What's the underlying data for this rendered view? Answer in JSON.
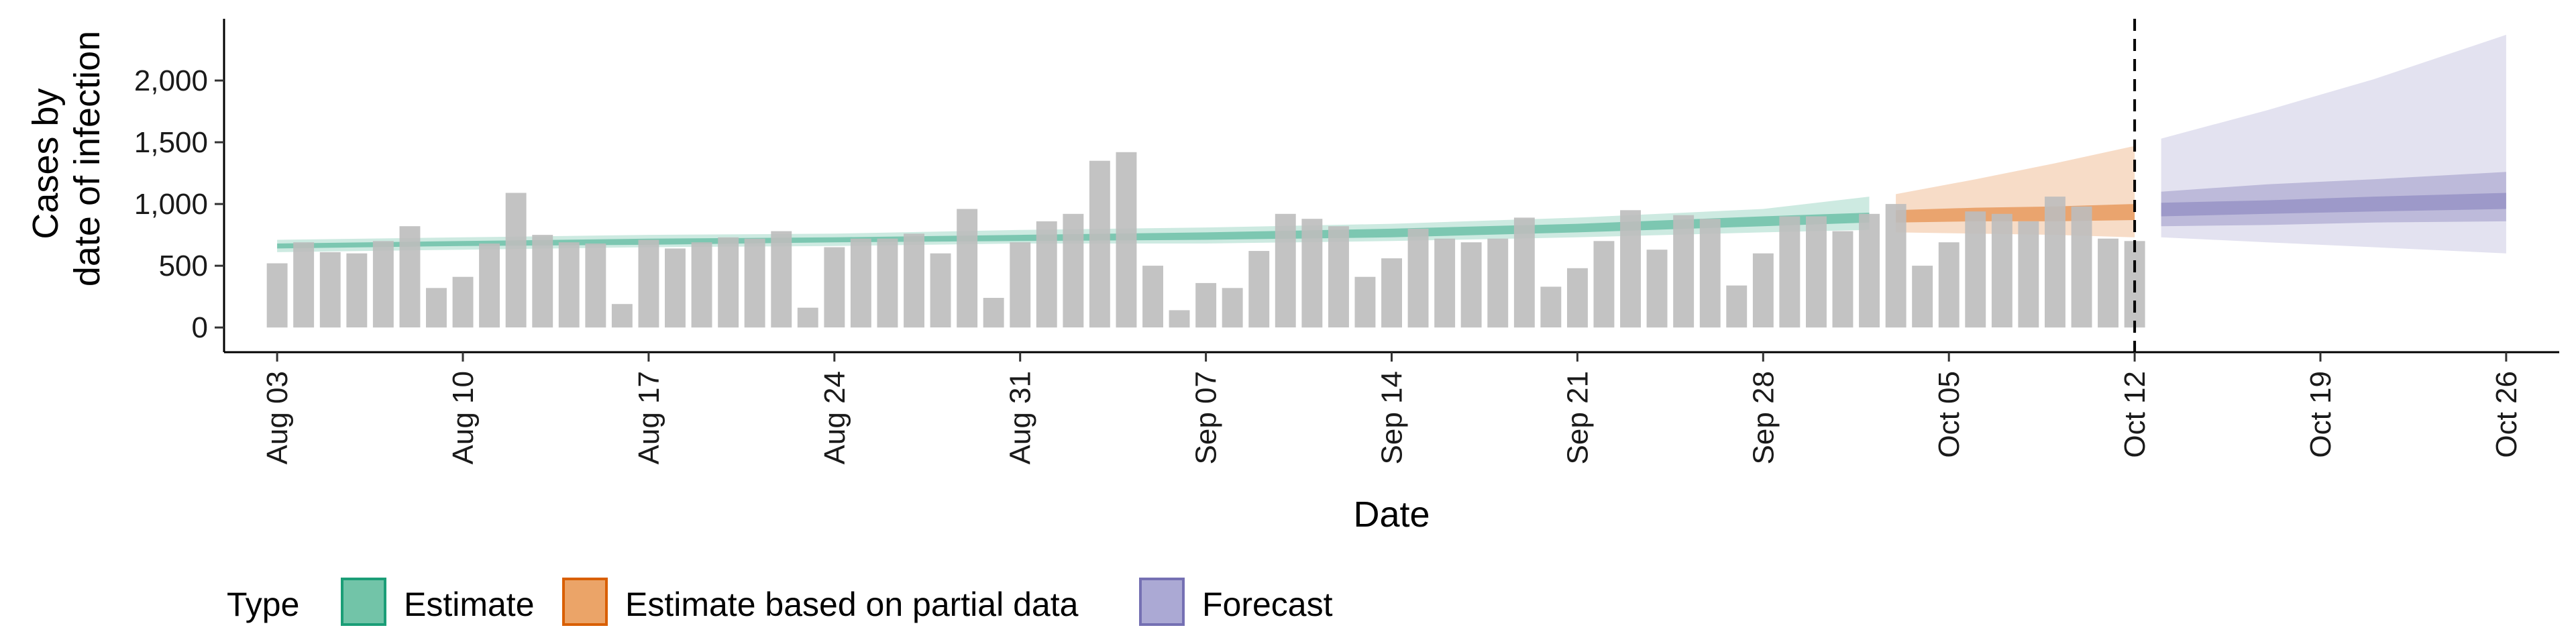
{
  "chart_data": {
    "type": "bar",
    "xlabel": "Date",
    "ylabel": [
      "Cases by",
      "date of infection"
    ],
    "ylim": [
      -200,
      2500
    ],
    "y_ticks": [
      0,
      500,
      1000,
      1500,
      2000
    ],
    "y_tick_labels": [
      "0",
      "500",
      "1,000",
      "1,500",
      "2,000"
    ],
    "x_start": "2020-08-03",
    "x_ticks": [
      "2020-08-03",
      "2020-08-10",
      "2020-08-17",
      "2020-08-24",
      "2020-08-31",
      "2020-09-07",
      "2020-09-14",
      "2020-09-21",
      "2020-09-28",
      "2020-10-05",
      "2020-10-12",
      "2020-10-19",
      "2020-10-26"
    ],
    "x_tick_labels": [
      "Aug 03",
      "Aug 10",
      "Aug 17",
      "Aug 24",
      "Aug 31",
      "Sep 07",
      "Sep 14",
      "Sep 21",
      "Sep 28",
      "Oct 05",
      "Oct 12",
      "Oct 19",
      "Oct 26"
    ],
    "xlim": [
      "2020-08-01",
      "2020-10-28"
    ],
    "vline_date": "2020-10-12",
    "grid": false,
    "legend": {
      "title": "Type",
      "position": "bottom",
      "entries": [
        {
          "label": "Estimate",
          "fill": "#72c4a8",
          "stroke": "#1b9e77"
        },
        {
          "label": "Estimate based on partial data",
          "fill": "#eba468",
          "stroke": "#d95f02"
        },
        {
          "label": "Forecast",
          "fill": "#aba9d4",
          "stroke": "#7570b3"
        }
      ]
    },
    "bars": {
      "color": "#bdbdbd",
      "start_date": "2020-08-03",
      "values": [
        520,
        690,
        610,
        600,
        700,
        820,
        320,
        410,
        680,
        1090,
        750,
        690,
        680,
        190,
        710,
        640,
        690,
        730,
        720,
        780,
        160,
        650,
        720,
        720,
        760,
        600,
        960,
        240,
        690,
        860,
        920,
        1350,
        1420,
        500,
        140,
        360,
        320,
        620,
        920,
        880,
        820,
        410,
        560,
        800,
        720,
        690,
        720,
        890,
        330,
        480,
        700,
        950,
        630,
        910,
        880,
        340,
        600,
        900,
        900,
        780,
        920,
        1000,
        500,
        690,
        940,
        920,
        860,
        1060,
        980,
        720,
        700
      ]
    },
    "series": [
      {
        "name": "Estimate",
        "color": "#1b9e77",
        "dates": [
          "2020-08-03",
          "2020-08-10",
          "2020-08-17",
          "2020-08-24",
          "2020-08-31",
          "2020-09-07",
          "2020-09-14",
          "2020-09-21",
          "2020-09-28",
          "2020-10-02"
        ],
        "inner_lower": [
          640,
          660,
          670,
          690,
          700,
          710,
          730,
          770,
          820,
          850
        ],
        "inner_upper": [
          680,
          700,
          720,
          730,
          750,
          770,
          800,
          840,
          900,
          930
        ],
        "outer_lower": [
          610,
          630,
          650,
          660,
          680,
          680,
          700,
          730,
          770,
          790
        ],
        "outer_upper": [
          710,
          730,
          750,
          760,
          790,
          810,
          840,
          890,
          960,
          1060
        ]
      },
      {
        "name": "Estimate based on partial data",
        "color": "#d95f02",
        "dates": [
          "2020-10-03",
          "2020-10-06",
          "2020-10-09",
          "2020-10-12"
        ],
        "inner_lower": [
          850,
          860,
          860,
          870
        ],
        "inner_upper": [
          950,
          970,
          980,
          1000
        ],
        "outer_lower": [
          770,
          760,
          750,
          730
        ],
        "outer_upper": [
          1080,
          1200,
          1330,
          1470
        ]
      },
      {
        "name": "Forecast",
        "color": "#7570b3",
        "dates": [
          "2020-10-13",
          "2020-10-17",
          "2020-10-21",
          "2020-10-26"
        ],
        "inner_lower": [
          900,
          920,
          940,
          960
        ],
        "inner_upper": [
          1010,
          1030,
          1060,
          1090
        ],
        "mid_lower": [
          820,
          830,
          850,
          860
        ],
        "mid_upper": [
          1100,
          1160,
          1200,
          1260
        ],
        "outer_lower": [
          730,
          690,
          650,
          600
        ],
        "outer_upper": [
          1530,
          1760,
          2010,
          2370
        ]
      }
    ]
  }
}
